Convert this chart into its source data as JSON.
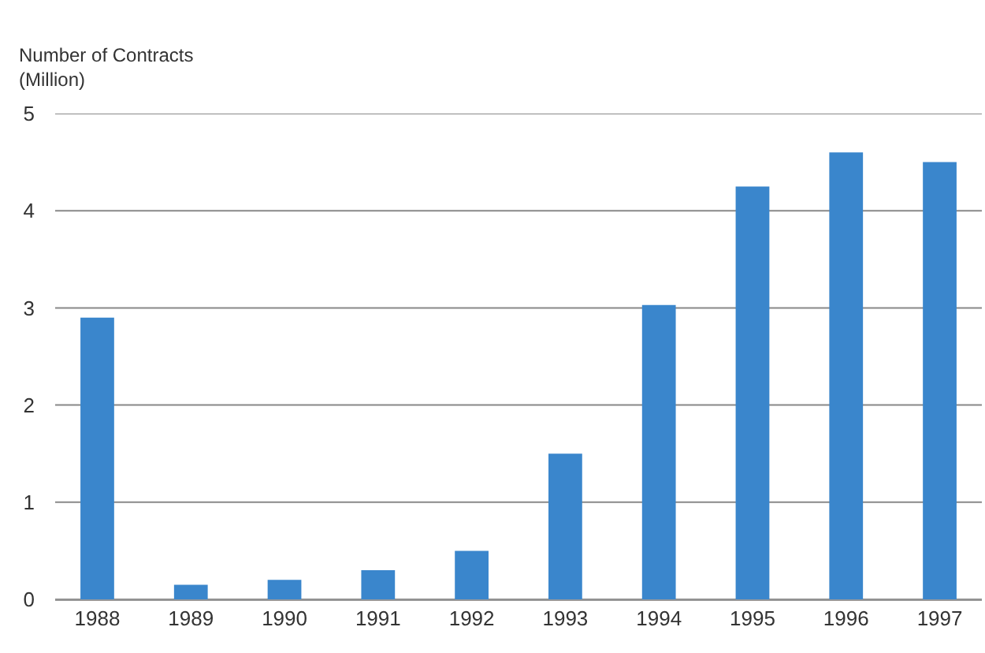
{
  "chart_data": {
    "type": "bar",
    "ylabel": "Number of Contracts\n(Million)",
    "categories": [
      "1988",
      "1989",
      "1990",
      "1991",
      "1992",
      "1993",
      "1994",
      "1995",
      "1996",
      "1997"
    ],
    "values": [
      2.9,
      0.15,
      0.2,
      0.3,
      0.5,
      1.5,
      3.03,
      4.25,
      4.6,
      4.5
    ],
    "color": "#3a86cc",
    "ylim": [
      0,
      5
    ],
    "yticks": [
      0,
      1,
      2,
      3,
      4,
      5
    ],
    "grid": "y"
  }
}
